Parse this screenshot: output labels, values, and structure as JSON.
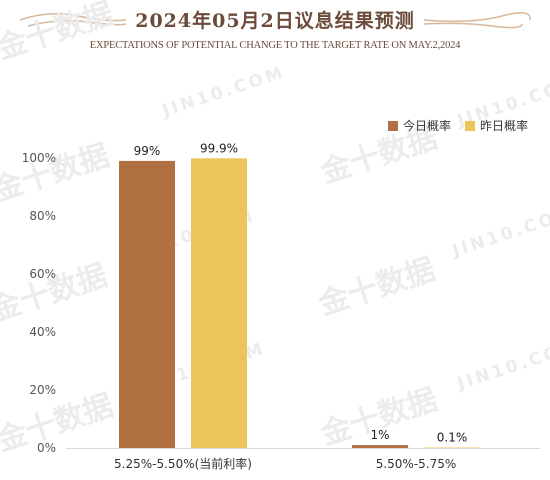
{
  "header": {
    "title": "2024年05月2日议息结果预测",
    "subtitle": "EXPECTATIONS OF POTENTIAL CHANGE TO THE TARGET RATE ON MAY.2,2024"
  },
  "watermark": {
    "cn": "金十数据",
    "en": "JIN10.COM"
  },
  "chart_data": {
    "type": "bar",
    "categories": [
      "5.25%-5.50%(当前利率)",
      "5.50%-5.75%"
    ],
    "series": [
      {
        "name": "今日概率",
        "values": [
          99,
          1
        ],
        "labels": [
          "99%",
          "1%"
        ],
        "color": "#b07042"
      },
      {
        "name": "昨日概率",
        "values": [
          99.9,
          0.1
        ],
        "labels": [
          "99.9%",
          "0.1%"
        ],
        "color": "#ecc45c"
      }
    ],
    "yticks": [
      "0%",
      "20%",
      "40%",
      "60%",
      "80%",
      "100%"
    ],
    "ylim": [
      0,
      100
    ],
    "legend_position": "top-right",
    "grid": false
  }
}
